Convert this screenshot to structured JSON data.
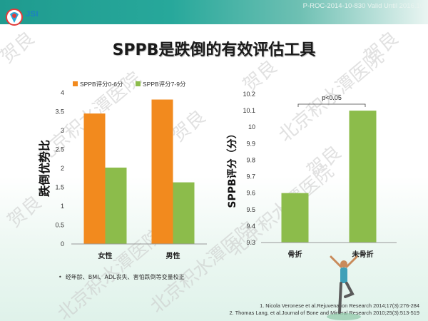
{
  "header": {
    "logo_text": "JSI",
    "doc_code": "P-ROC-2014-10-830  Valid Until 2016.10"
  },
  "title": "SPPB是跌倒的有效评估工具",
  "watermark": [
    "贺良",
    "北京积水潭医院"
  ],
  "footnote": "经年龄、BMI、ADL丧失、害怕跌倒等变量校正",
  "references": [
    "1.   Nicola Veronese et al.Rejuvenation  Research  2014;17(3):276-284",
    "2.   Thomas Lang, et al.Journal of Bone and Mineral Research 2010;25(3):513-519"
  ],
  "colors": {
    "orange": "#f28a1e",
    "green": "#8cbc4b",
    "teal": "#27a89b"
  },
  "chart_data": [
    {
      "type": "bar",
      "categories": [
        "女性",
        "男性"
      ],
      "series": [
        {
          "name": "SPPB评分0-6分",
          "values": [
            3.45,
            3.82
          ]
        },
        {
          "name": "SPPB评分7-9分",
          "values": [
            2.02,
            1.63
          ]
        }
      ],
      "ylabel": "跌倒优势比",
      "ylim": [
        0,
        4
      ],
      "yticks": [
        "0",
        "0.5",
        "1",
        "1.5",
        "2",
        "2.5",
        "3",
        "3.5",
        "4"
      ],
      "legend": "top",
      "grid": false
    },
    {
      "type": "bar",
      "categories": [
        "骨折",
        "未骨折"
      ],
      "values": [
        9.6,
        10.1
      ],
      "ylabel": "SPPB评分（分）",
      "ylim": [
        9.3,
        10.2
      ],
      "yticks": [
        "9.3",
        "9.4",
        "9.5",
        "9.6",
        "9.7",
        "9.8",
        "9.9",
        "10",
        "10.1",
        "10.2"
      ],
      "annotation": "p<0.05",
      "grid": false
    }
  ]
}
